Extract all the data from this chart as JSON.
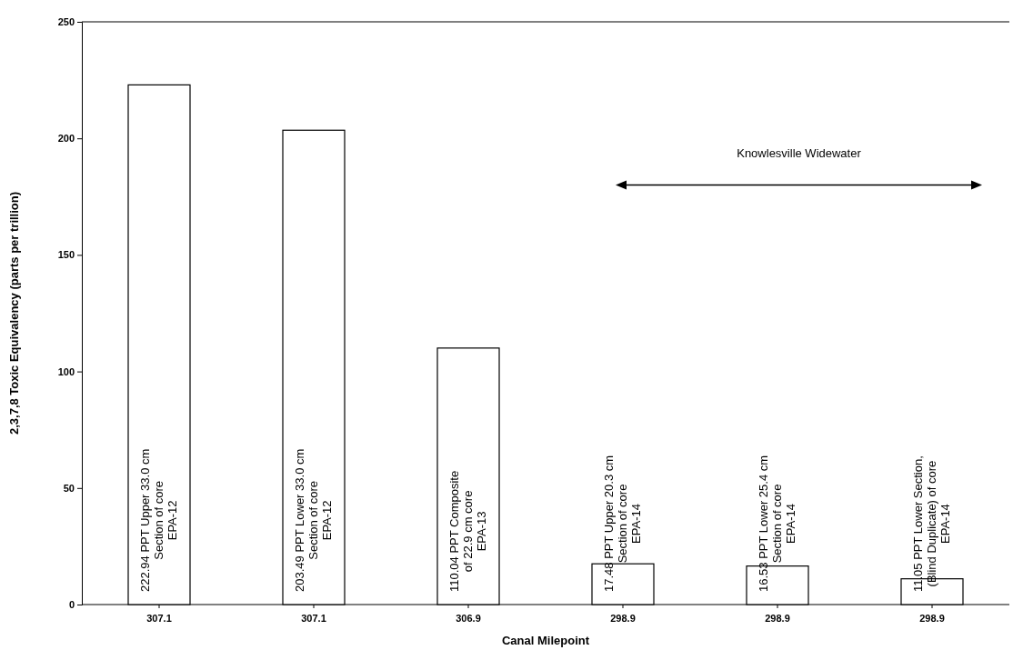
{
  "chart_data": {
    "type": "bar",
    "xlabel": "Canal Milepoint",
    "ylabel": "2,3,7,8 Toxic Equivalency (parts per trillion)",
    "categories": [
      "307.1",
      "307.1",
      "306.9",
      "298.9",
      "298.9",
      "298.9"
    ],
    "values": [
      222.94,
      203.49,
      110.04,
      17.48,
      16.53,
      11.05
    ],
    "value_labels": [
      "222.94 PPT Upper 33.0 cm\nSection of core\nEPA-12",
      "203.49 PPT Lower 33.0 cm\nSection of core\nEPA-12",
      "110.04 PPT Composite\nof 22.9 cm core\nEPA-13",
      "17.48 PPT Upper 20.3 cm\nSection of core\nEPA-14",
      "16.53 PPT Lower 25.4 cm\nSection of core\nEPA-14",
      "11.05 PPT Lower Section,\n(Blind Duplicate) of core\nEPA-14"
    ],
    "color": "#ffffff",
    "ylim": [
      0,
      250
    ],
    "yticks": [
      0,
      50,
      100,
      150,
      200,
      250
    ],
    "grid": false,
    "annotations": [
      "Knowlesville Widewater"
    ]
  }
}
